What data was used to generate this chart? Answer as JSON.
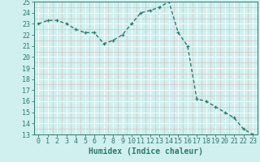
{
  "x": [
    0,
    1,
    2,
    3,
    4,
    5,
    6,
    7,
    8,
    9,
    10,
    11,
    12,
    13,
    14,
    15,
    16,
    17,
    18,
    19,
    20,
    21,
    22,
    23
  ],
  "y": [
    23.0,
    23.3,
    23.3,
    23.0,
    22.5,
    22.2,
    22.2,
    21.2,
    21.5,
    22.0,
    23.0,
    24.0,
    24.2,
    24.5,
    25.0,
    22.2,
    21.0,
    16.2,
    16.0,
    15.5,
    15.0,
    14.5,
    13.5,
    13.0
  ],
  "xlabel": "Humidex (Indice chaleur)",
  "ylim": [
    13,
    25
  ],
  "xlim": [
    -0.5,
    23.5
  ],
  "yticks": [
    13,
    14,
    15,
    16,
    17,
    18,
    19,
    20,
    21,
    22,
    23,
    24,
    25
  ],
  "xticks": [
    0,
    1,
    2,
    3,
    4,
    5,
    6,
    7,
    8,
    9,
    10,
    11,
    12,
    13,
    14,
    15,
    16,
    17,
    18,
    19,
    20,
    21,
    22,
    23
  ],
  "line_color": "#2d7a6e",
  "marker": "+",
  "marker_size": 3.5,
  "line_width": 1.0,
  "bg_color": "#cff0ee",
  "grid_color_major": "#ffffff",
  "grid_color_minor": "#d8b8b8",
  "tick_color": "#2d7a6e",
  "label_color": "#2d7a6e",
  "xlabel_fontsize": 7,
  "tick_fontsize": 6
}
